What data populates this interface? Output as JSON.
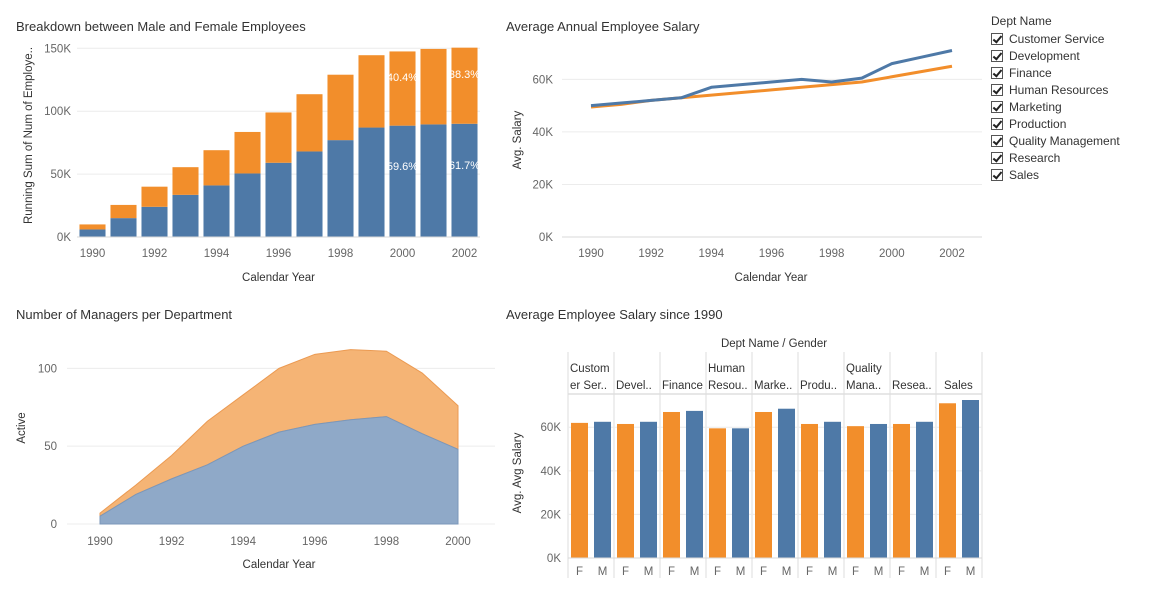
{
  "charts": {
    "breakdown": {
      "title": "Breakdown between Male and Female Employees",
      "xlabel": "Calendar Year",
      "ylabel": "Running Sum of Num of Employe..",
      "yticks": [
        "0K",
        "50K",
        "100K",
        "150K"
      ],
      "xticks": [
        "1990",
        "1992",
        "1994",
        "1996",
        "1998",
        "2000",
        "2002"
      ]
    },
    "salary_line": {
      "title": "Average Annual Employee Salary",
      "xlabel": "Calendar Year",
      "ylabel": "Avg. Salary",
      "yticks": [
        "0K",
        "20K",
        "40K",
        "60K"
      ],
      "xticks": [
        "1990",
        "1992",
        "1994",
        "1996",
        "1998",
        "2000",
        "2002"
      ]
    },
    "managers": {
      "title": "Number of Managers per Department",
      "xlabel": "Calendar Year",
      "ylabel": "Active",
      "yticks": [
        "0",
        "50",
        "100"
      ],
      "xticks": [
        "1990",
        "1992",
        "1994",
        "1996",
        "1998",
        "2000"
      ]
    },
    "dept_salary": {
      "title": "Average Employee Salary since 1990",
      "header": "Dept Name  /  Gender",
      "ylabel": "Avg. Avg Salary",
      "yticks": [
        "0K",
        "20K",
        "40K",
        "60K"
      ],
      "dept_labels": [
        [
          "Custom",
          "er Ser.."
        ],
        [
          "Devel.."
        ],
        [
          "Finance"
        ],
        [
          "Human",
          "Resou.."
        ],
        [
          "Marke.."
        ],
        [
          "Produ.."
        ],
        [
          "Quality",
          "Mana.."
        ],
        [
          "Resea.."
        ],
        [
          "Sales"
        ]
      ],
      "gender_labels": [
        "F",
        "M"
      ]
    }
  },
  "legend": {
    "title": "Dept Name",
    "items": [
      "Customer Service",
      "Development",
      "Finance",
      "Human Resources",
      "Marketing",
      "Production",
      "Quality Management",
      "Research",
      "Sales"
    ]
  },
  "colors": {
    "blue": "#4e79a7",
    "orange": "#f28e2b",
    "area_blue": "#8fa9c8",
    "area_orange": "#f5b475"
  },
  "chart_data": [
    {
      "type": "bar",
      "title": "Breakdown between Male and Female Employees",
      "xlabel": "Calendar Year",
      "ylabel": "Running Sum of Num of Employe..",
      "categories": [
        1990,
        1991,
        1992,
        1993,
        1994,
        1995,
        1996,
        1997,
        1998,
        1999,
        2000,
        2001,
        2002
      ],
      "stacked": true,
      "ylim": [
        0,
        155000
      ],
      "series": [
        {
          "color": "#4e79a7",
          "values": [
            6000,
            15000,
            24000,
            33500,
            41000,
            50500,
            59000,
            68000,
            77000,
            87000,
            88500,
            89500,
            90000
          ]
        },
        {
          "color": "#f28e2b",
          "values": [
            4000,
            10500,
            16000,
            22000,
            28000,
            33000,
            40000,
            45500,
            52000,
            57500,
            59000,
            60000,
            60500
          ]
        }
      ],
      "annotations": [
        {
          "x": 2000,
          "text": "40.4%",
          "series": 1
        },
        {
          "x": 2002,
          "text": "38.3%",
          "series": 1
        },
        {
          "x": 2000,
          "text": "59.6%",
          "series": 0
        },
        {
          "x": 2002,
          "text": "61.7%",
          "series": 0
        }
      ]
    },
    {
      "type": "line",
      "title": "Average Annual Employee Salary",
      "xlabel": "Calendar Year",
      "ylabel": "Avg. Salary",
      "x": [
        1990,
        1991,
        1992,
        1993,
        1994,
        1995,
        1996,
        1997,
        1998,
        1999,
        2000,
        2001,
        2002
      ],
      "ylim": [
        0,
        70000
      ],
      "series": [
        {
          "color": "#4e79a7",
          "values": [
            50000,
            51000,
            52000,
            53000,
            57000,
            58000,
            59000,
            60000,
            59000,
            60500,
            66000,
            68500,
            71000
          ]
        },
        {
          "color": "#f28e2b",
          "values": [
            49500,
            50500,
            52000,
            53000,
            54000,
            55000,
            56000,
            57000,
            58000,
            59000,
            61000,
            63000,
            65000
          ]
        }
      ]
    },
    {
      "type": "area",
      "title": "Number of Managers per Department",
      "xlabel": "Calendar Year",
      "ylabel": "Active",
      "x": [
        1990,
        1991,
        1992,
        1993,
        1994,
        1995,
        1996,
        1997,
        1998,
        1999,
        2000
      ],
      "stacked": true,
      "ylim": [
        0,
        115
      ],
      "series": [
        {
          "color": "#8fa9c8",
          "values": [
            5,
            19,
            29,
            38,
            50,
            59,
            64,
            67,
            69,
            58,
            48
          ]
        },
        {
          "color": "#f5b475",
          "values": [
            2,
            6,
            15,
            28,
            33,
            41,
            45,
            45,
            42,
            39,
            28
          ]
        }
      ]
    },
    {
      "type": "bar",
      "title": "Average Employee Salary since 1990",
      "ylabel": "Avg. Avg Salary",
      "categories": [
        "Customer Service",
        "Development",
        "Finance",
        "Human Resources",
        "Marketing",
        "Production",
        "Quality Management",
        "Research",
        "Sales"
      ],
      "ylim": [
        0,
        72000
      ],
      "series": [
        {
          "name": "F",
          "color": "#f28e2b",
          "values": [
            62000,
            61500,
            67000,
            59500,
            67000,
            61500,
            60500,
            61500,
            71000
          ]
        },
        {
          "name": "M",
          "color": "#4e79a7",
          "values": [
            62500,
            62500,
            67500,
            59500,
            68500,
            62500,
            61500,
            62500,
            72500
          ]
        }
      ]
    }
  ]
}
